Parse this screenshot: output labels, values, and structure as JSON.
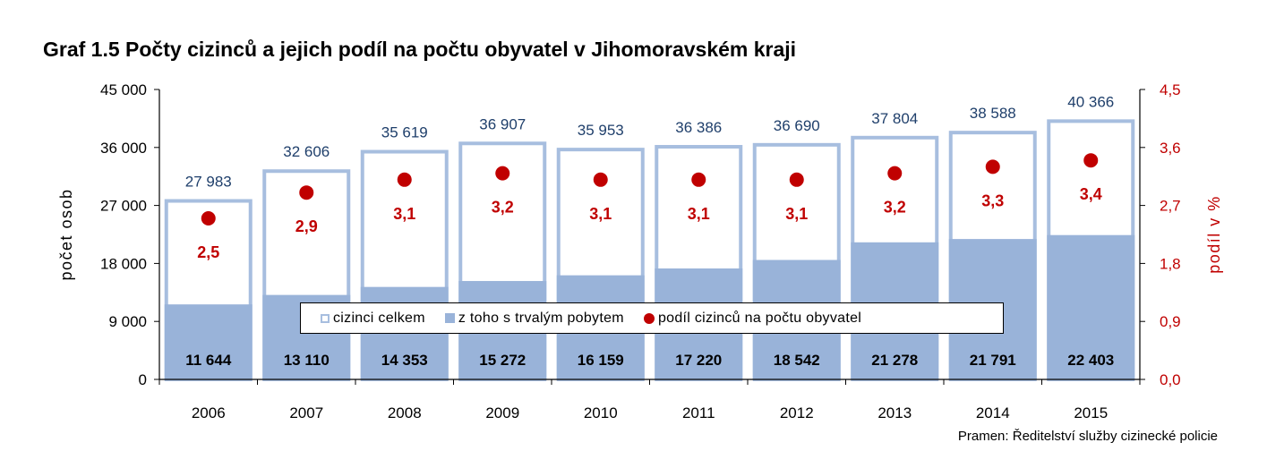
{
  "title": "Graf 1.5 Počty cizinců a jejich podíl na počtu obyvatel v Jihomoravském kraji",
  "source": "Pramen: Ředitelství služby cizinecké policie",
  "colors": {
    "total_outline": "#a7bedf",
    "permanent_fill": "#99b3d9",
    "share_marker": "#c00000",
    "total_label": "#1f3f6b",
    "share_label": "#c00000"
  },
  "legend": {
    "total": "cizinci celkem",
    "permanent": "z toho s trvalým pobytem",
    "share": "podíl cizinců na počtu obyvatel"
  },
  "chart_data": {
    "type": "bar",
    "categories": [
      "2006",
      "2007",
      "2008",
      "2009",
      "2010",
      "2011",
      "2012",
      "2013",
      "2014",
      "2015"
    ],
    "series": [
      {
        "name": "cizinci celkem",
        "axis": "left",
        "values": [
          27983,
          32606,
          35619,
          36907,
          35953,
          36386,
          36690,
          37804,
          38588,
          40366
        ],
        "labels": [
          "27 983",
          "32 606",
          "35 619",
          "36 907",
          "35 953",
          "36 386",
          "36 690",
          "37 804",
          "38 588",
          "40 366"
        ]
      },
      {
        "name": "z toho s trvalým pobytem",
        "axis": "left",
        "values": [
          11644,
          13110,
          14353,
          15272,
          16159,
          17220,
          18542,
          21278,
          21791,
          22403
        ],
        "labels": [
          "11 644",
          "13 110",
          "14 353",
          "15 272",
          "16 159",
          "17 220",
          "18 542",
          "21 278",
          "21 791",
          "22 403"
        ]
      },
      {
        "name": "podíl cizinců na počtu obyvatel",
        "axis": "right",
        "type": "scatter",
        "values": [
          2.5,
          2.9,
          3.1,
          3.2,
          3.1,
          3.1,
          3.1,
          3.2,
          3.3,
          3.4
        ],
        "labels": [
          "2,5",
          "2,9",
          "3,1",
          "3,2",
          "3,1",
          "3,1",
          "3,1",
          "3,2",
          "3,3",
          "3,4"
        ]
      }
    ],
    "ylabel": "počet osob",
    "ylim": [
      0,
      45000
    ],
    "yticks": [
      "0",
      "9 000",
      "18 000",
      "27 000",
      "36 000",
      "45 000"
    ],
    "y2label": "podíl v %",
    "y2lim": [
      0,
      4.5
    ],
    "y2ticks": [
      "0,0",
      "0,9",
      "1,8",
      "2,7",
      "3,6",
      "4,5"
    ],
    "grid": false,
    "legend_position": "bottom-inside"
  }
}
